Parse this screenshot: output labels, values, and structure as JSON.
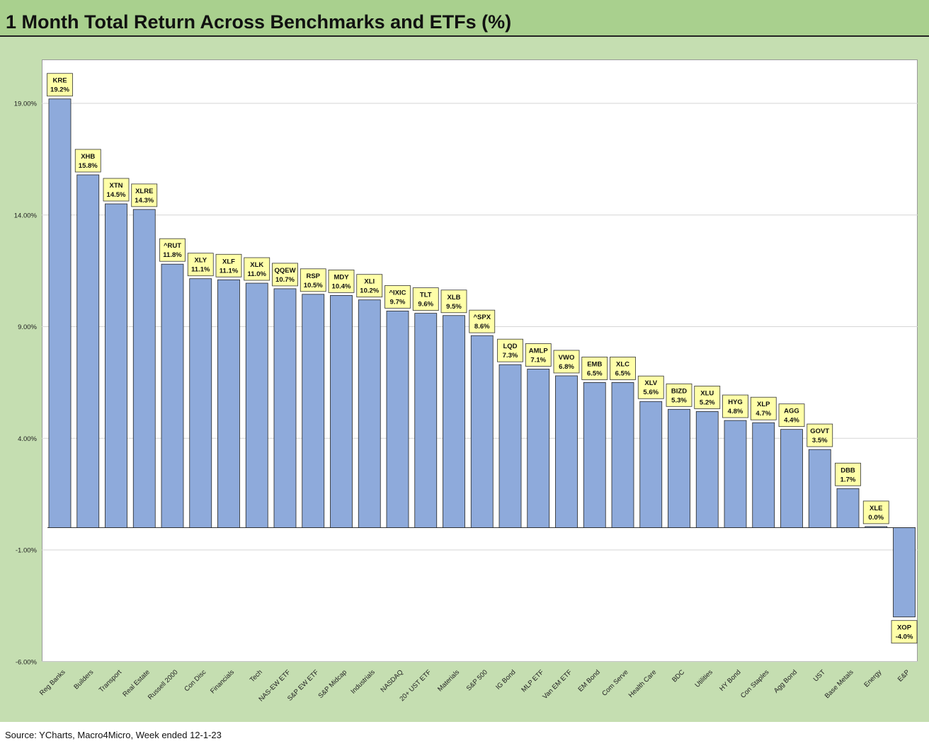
{
  "title": "1 Month Total Return Across Benchmarks and ETFs (%)",
  "source": "Source: YCharts, Macro4Micro, Week ended 12-1-23",
  "colors": {
    "bar": "#8eaadb",
    "label_bg": "#ffffa8",
    "background": "#c5deb1",
    "title_bg": "#a9d08e"
  },
  "chart_data": {
    "type": "bar",
    "title": "1 Month Total Return Across Benchmarks and ETFs (%)",
    "xlabel": "",
    "ylabel": "",
    "ylim": [
      -6,
      21
    ],
    "yticks": [
      19,
      14,
      9,
      4,
      -1,
      -6
    ],
    "ytick_labels": [
      "19.00%",
      "14.00%",
      "9.00%",
      "4.00%",
      "-1.00%",
      "-6.00%"
    ],
    "grid": true,
    "categories": [
      "Reg Banks",
      "Builders",
      "Transport",
      "Real Estate",
      "Russell 2000",
      "Con Disc",
      "Financials",
      "Tech",
      "NAS-EW ETF",
      "S&P EW ETF",
      "S&P Midcap",
      "Industrials",
      "NASDAQ",
      "20+ UST ETF",
      "Materials",
      "S&P 500",
      "IG Bond",
      "MLP ETF",
      "Van EM ETF",
      "EM Bond",
      "Com Serve",
      "Health Care",
      "BDC",
      "Utilities",
      "HY Bond",
      "Con Staples",
      "Agg Bond",
      "UST",
      "Base Metals",
      "Energy",
      "E&P"
    ],
    "tickers": [
      "KRE",
      "XHB",
      "XTN",
      "XLRE",
      "^RUT",
      "XLY",
      "XLF",
      "XLK",
      "QQEW",
      "RSP",
      "MDY",
      "XLI",
      "^IXIC",
      "TLT",
      "XLB",
      "^SPX",
      "LQD",
      "AMLP",
      "VWO",
      "EMB",
      "XLC",
      "XLV",
      "BIZD",
      "XLU",
      "HYG",
      "XLP",
      "AGG",
      "GOVT",
      "DBB",
      "XLE",
      "XOP"
    ],
    "value_labels": [
      "19.2%",
      "15.8%",
      "14.5%",
      "14.3%",
      "11.8%",
      "11.1%",
      "11.1%",
      "11.0%",
      "10.7%",
      "10.5%",
      "10.4%",
      "10.2%",
      "9.7%",
      "9.6%",
      "9.5%",
      "8.6%",
      "7.3%",
      "7.1%",
      "6.8%",
      "6.5%",
      "6.5%",
      "5.6%",
      "5.3%",
      "5.2%",
      "4.8%",
      "4.7%",
      "4.4%",
      "3.5%",
      "1.7%",
      "0.0%",
      "-4.0%"
    ],
    "values": [
      19.2,
      15.8,
      14.5,
      14.25,
      11.8,
      11.15,
      11.1,
      10.95,
      10.7,
      10.45,
      10.4,
      10.2,
      9.7,
      9.6,
      9.5,
      8.6,
      7.3,
      7.1,
      6.8,
      6.5,
      6.5,
      5.65,
      5.3,
      5.2,
      4.8,
      4.7,
      4.4,
      3.5,
      1.75,
      0.05,
      -4.0
    ]
  }
}
